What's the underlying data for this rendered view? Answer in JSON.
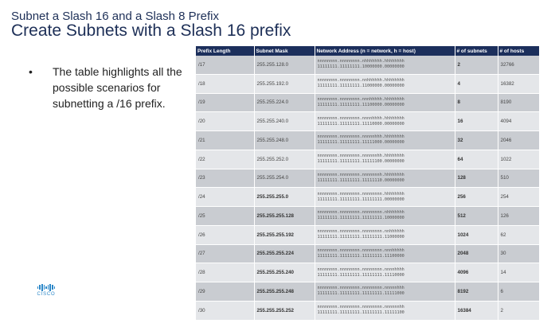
{
  "slide": {
    "kicker": "Subnet a Slash 16 and a Slash 8 Prefix",
    "title": "Create Subnets with a Slash 16 prefix",
    "bullet_marker": "•",
    "bullet": "The table highlights all the possible scenarios for subnetting a /16 prefix.",
    "logo_text": "CISCO"
  },
  "table": {
    "headers": [
      "Prefix Length",
      "Subnet Mask",
      "Network Address (n = network, h = host)",
      "# of subnets",
      "# of hosts"
    ],
    "rows": [
      {
        "prefix": "/17",
        "mask": "255.255.128.0",
        "addr1": "nnnnnnnn.nnnnnnnn.nhhhhhhh.hhhhhhhh",
        "addr2": "11111111.11111111.10000000.00000000",
        "subnets": "2",
        "hosts": "32766"
      },
      {
        "prefix": "/18",
        "mask": "255.255.192.0",
        "addr1": "nnnnnnnn.nnnnnnnn.nnhhhhhh.hhhhhhhh",
        "addr2": "11111111.11111111.11000000.00000000",
        "subnets": "4",
        "hosts": "16382"
      },
      {
        "prefix": "/19",
        "mask": "255.255.224.0",
        "addr1": "nnnnnnnn.nnnnnnnn.nnnhhhhh.hhhhhhhh",
        "addr2": "11111111.11111111.11100000.00000000",
        "subnets": "8",
        "hosts": "8190"
      },
      {
        "prefix": "/20",
        "mask": "255.255.240.0",
        "addr1": "nnnnnnnn.nnnnnnnn.nnnnhhhh.hhhhhhhh",
        "addr2": "11111111.11111111.11110000.00000000",
        "subnets": "16",
        "hosts": "4094"
      },
      {
        "prefix": "/21",
        "mask": "255.255.248.0",
        "addr1": "nnnnnnnn.nnnnnnnn.nnnnnhhh.hhhhhhhh",
        "addr2": "11111111.11111111.11111000.00000000",
        "subnets": "32",
        "hosts": "2046"
      },
      {
        "prefix": "/22",
        "mask": "255.255.252.0",
        "addr1": "nnnnnnnn.nnnnnnnn.nnnnnnhh.hhhhhhhh",
        "addr2": "11111111.11111111.11111100.00000000",
        "subnets": "64",
        "hosts": "1022"
      },
      {
        "prefix": "/23",
        "mask": "255.255.254.0",
        "addr1": "nnnnnnnn.nnnnnnnn.nnnnnnnh.hhhhhhhh",
        "addr2": "11111111.11111111.11111110.00000000",
        "subnets": "128",
        "hosts": "510"
      },
      {
        "prefix": "/24",
        "mask": "255.255.255.0",
        "addr1": "nnnnnnnn.nnnnnnnn.nnnnnnnn.hhhhhhhh",
        "addr2": "11111111.11111111.11111111.00000000",
        "subnets": "256",
        "hosts": "254"
      },
      {
        "prefix": "/25",
        "mask": "255.255.255.128",
        "addr1": "nnnnnnnn.nnnnnnnn.nnnnnnnn.nhhhhhhh",
        "addr2": "11111111.11111111.11111111.10000000",
        "subnets": "512",
        "hosts": "126"
      },
      {
        "prefix": "/26",
        "mask": "255.255.255.192",
        "addr1": "nnnnnnnn.nnnnnnnn.nnnnnnnn.nnhhhhhh",
        "addr2": "11111111.11111111.11111111.11000000",
        "subnets": "1024",
        "hosts": "62"
      },
      {
        "prefix": "/27",
        "mask": "255.255.255.224",
        "addr1": "nnnnnnnn.nnnnnnnn.nnnnnnnn.nnnhhhhh",
        "addr2": "11111111.11111111.11111111.11100000",
        "subnets": "2048",
        "hosts": "30"
      },
      {
        "prefix": "/28",
        "mask": "255.255.255.240",
        "addr1": "nnnnnnnn.nnnnnnnn.nnnnnnnn.nnnnhhhh",
        "addr2": "11111111.11111111.11111111.11110000",
        "subnets": "4096",
        "hosts": "14"
      },
      {
        "prefix": "/29",
        "mask": "255.255.255.248",
        "addr1": "nnnnnnnn.nnnnnnnn.nnnnnnnn.nnnnnhhh",
        "addr2": "11111111.11111111.11111111.11111000",
        "subnets": "8192",
        "hosts": "6"
      },
      {
        "prefix": "/30",
        "mask": "255.255.255.252",
        "addr1": "nnnnnnnn.nnnnnnnn.nnnnnnnn.nnnnnnhh",
        "addr2": "11111111.11111111.11111111.11111100",
        "subnets": "16384",
        "hosts": "2"
      }
    ]
  },
  "colors": {
    "header_bg": "#1c2f5c",
    "row_dark": "#c9ccd1",
    "row_light": "#e4e6e9",
    "title": "#1d2f57",
    "logo": "#2b87c8"
  }
}
